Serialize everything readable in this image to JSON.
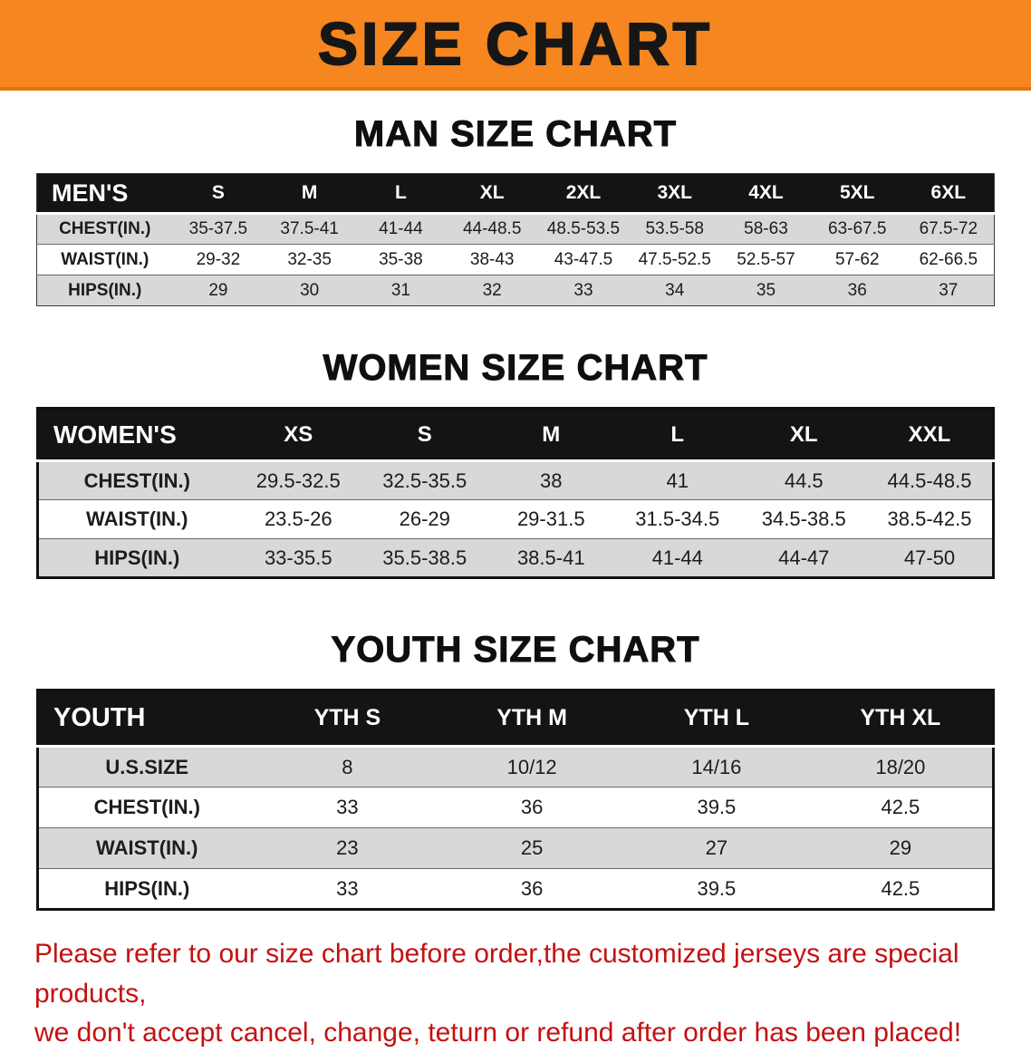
{
  "banner": {
    "title": "SIZE CHART",
    "bg_color": "#f6861f",
    "text_color": "#161616"
  },
  "colors": {
    "table_header_bg": "#141414",
    "table_header_text": "#ffffff",
    "stripe_row_bg": "#d8d8d8",
    "footer_text": "#c41111"
  },
  "sections": [
    {
      "heading": "MAN SIZE CHART",
      "table": {
        "label": "MEN'S",
        "columns": [
          "S",
          "M",
          "L",
          "XL",
          "2XL",
          "3XL",
          "4XL",
          "5XL",
          "6XL"
        ],
        "rows": [
          {
            "label": "CHEST(IN.)",
            "values": [
              "35-37.5",
              "37.5-41",
              "41-44",
              "44-48.5",
              "48.5-53.5",
              "53.5-58",
              "58-63",
              "63-67.5",
              "67.5-72"
            ]
          },
          {
            "label": "WAIST(IN.)",
            "values": [
              "29-32",
              "32-35",
              "35-38",
              "38-43",
              "43-47.5",
              "47.5-52.5",
              "52.5-57",
              "57-62",
              "62-66.5"
            ]
          },
          {
            "label": "HIPS(IN.)",
            "values": [
              "29",
              "30",
              "31",
              "32",
              "33",
              "34",
              "35",
              "36",
              "37"
            ]
          }
        ]
      }
    },
    {
      "heading": "WOMEN SIZE CHART",
      "table": {
        "label": "WOMEN'S",
        "columns": [
          "XS",
          "S",
          "M",
          "L",
          "XL",
          "XXL"
        ],
        "rows": [
          {
            "label": "CHEST(IN.)",
            "values": [
              "29.5-32.5",
              "32.5-35.5",
              "38",
              "41",
              "44.5",
              "44.5-48.5"
            ]
          },
          {
            "label": "WAIST(IN.)",
            "values": [
              "23.5-26",
              "26-29",
              "29-31.5",
              "31.5-34.5",
              "34.5-38.5",
              "38.5-42.5"
            ]
          },
          {
            "label": "HIPS(IN.)",
            "values": [
              "33-35.5",
              "35.5-38.5",
              "38.5-41",
              "41-44",
              "44-47",
              "47-50"
            ]
          }
        ]
      }
    },
    {
      "heading": "YOUTH SIZE CHART",
      "table": {
        "label": "YOUTH",
        "columns": [
          "YTH S",
          "YTH M",
          "YTH L",
          "YTH XL"
        ],
        "rows": [
          {
            "label": "U.S.SIZE",
            "values": [
              "8",
              "10/12",
              "14/16",
              "18/20"
            ]
          },
          {
            "label": "CHEST(IN.)",
            "values": [
              "33",
              "36",
              "39.5",
              "42.5"
            ]
          },
          {
            "label": "WAIST(IN.)",
            "values": [
              "23",
              "25",
              "27",
              "29"
            ]
          },
          {
            "label": "HIPS(IN.)",
            "values": [
              "33",
              "36",
              "39.5",
              "42.5"
            ]
          }
        ]
      }
    }
  ],
  "footer": {
    "line1": "Please refer to our size chart before order,the customized jerseys are special products,",
    "line2": "we don't accept cancel, change, teturn or refund after order has been placed!"
  }
}
